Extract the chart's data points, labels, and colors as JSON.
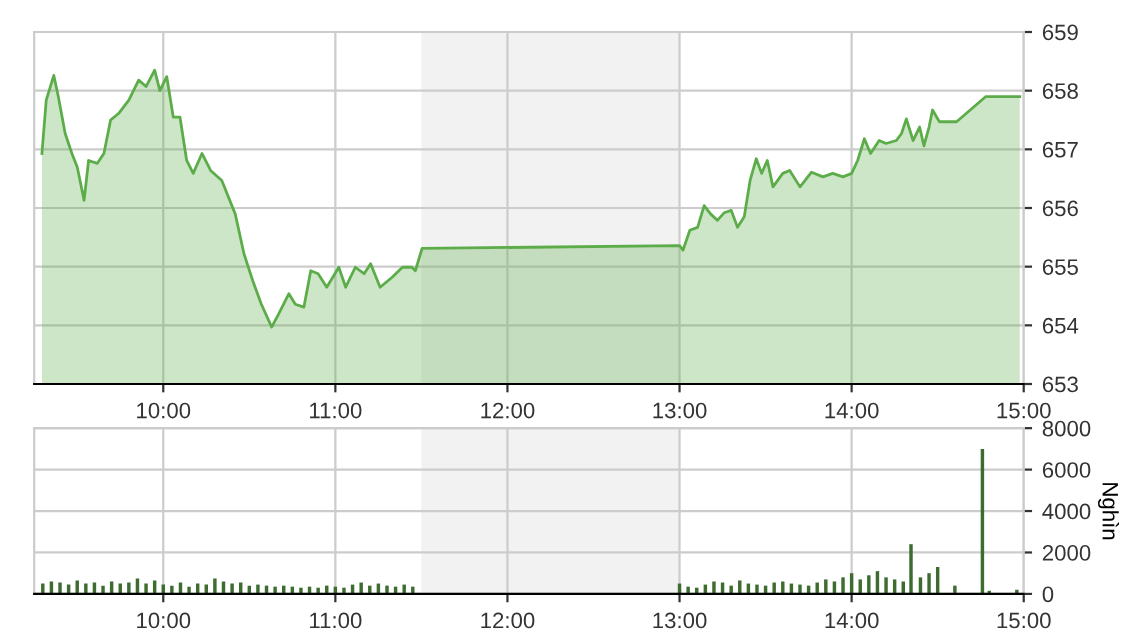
{
  "chart_data": [
    {
      "type": "area",
      "xlim": [
        9.25,
        15
      ],
      "ylim": [
        653,
        659
      ],
      "xticks": [
        {
          "value": 10,
          "label": "10:00"
        },
        {
          "value": 11,
          "label": "11:00"
        },
        {
          "value": 12,
          "label": "12:00"
        },
        {
          "value": 13,
          "label": "13:00"
        },
        {
          "value": 14,
          "label": "14:00"
        },
        {
          "value": 15,
          "label": "15:00"
        }
      ],
      "yticks": [
        653,
        654,
        655,
        656,
        657,
        658,
        659
      ],
      "grid": true,
      "bands": [
        {
          "axis": "x",
          "from": 11.5,
          "to": 13,
          "color": "#f2f2f2"
        }
      ],
      "series": [
        {
          "color": "#5cad4a",
          "x": [
            9.295,
            9.32,
            9.364,
            9.39,
            9.43,
            9.469,
            9.5,
            9.54,
            9.566,
            9.616,
            9.655,
            9.694,
            9.74,
            9.8,
            9.857,
            9.9,
            9.95,
            9.98,
            10.02,
            10.058,
            10.097,
            10.136,
            10.174,
            10.225,
            10.275,
            10.34,
            10.418,
            10.469,
            10.52,
            10.57,
            10.63,
            10.67,
            10.73,
            10.767,
            10.817,
            10.857,
            10.9,
            10.95,
            11.02,
            11.06,
            11.116,
            11.167,
            11.205,
            11.26,
            11.33,
            11.39,
            11.445,
            11.465,
            11.504,
            13.0,
            13.02,
            13.06,
            13.105,
            13.143,
            13.18,
            13.22,
            13.26,
            13.3,
            13.337,
            13.376,
            13.41,
            13.446,
            13.477,
            13.51,
            13.543,
            13.6,
            13.64,
            13.7,
            13.767,
            13.833,
            13.89,
            13.95,
            14.0,
            14.035,
            14.074,
            14.11,
            14.16,
            14.2,
            14.26,
            14.29,
            14.318,
            14.357,
            14.395,
            14.42,
            14.45,
            14.47,
            14.51,
            14.61,
            14.78,
            14.977
          ],
          "values": [
            656.93,
            657.84,
            658.26,
            657.9,
            657.27,
            656.93,
            656.7,
            656.13,
            656.81,
            656.76,
            656.93,
            657.5,
            657.61,
            657.84,
            658.18,
            658.07,
            658.35,
            658.0,
            658.24,
            657.55,
            657.55,
            656.81,
            656.59,
            656.93,
            656.64,
            656.47,
            655.9,
            655.22,
            654.76,
            654.36,
            653.97,
            654.19,
            654.54,
            654.36,
            654.31,
            654.93,
            654.88,
            654.65,
            654.99,
            654.65,
            654.99,
            654.88,
            655.05,
            654.65,
            654.82,
            654.99,
            654.99,
            654.93,
            655.31,
            655.36,
            655.28,
            655.62,
            655.67,
            656.04,
            655.9,
            655.79,
            655.92,
            655.96,
            655.67,
            655.85,
            656.47,
            656.84,
            656.59,
            656.81,
            656.36,
            656.59,
            656.64,
            656.36,
            656.61,
            656.53,
            656.59,
            656.53,
            656.59,
            656.81,
            657.18,
            656.93,
            657.15,
            657.1,
            657.15,
            657.27,
            657.52,
            657.15,
            657.38,
            657.06,
            657.38,
            657.67,
            657.47,
            657.47,
            657.9,
            657.9
          ]
        }
      ]
    },
    {
      "type": "bar",
      "xlim": [
        9.25,
        15
      ],
      "ylim": [
        0,
        8000
      ],
      "ylabel": "Nghìn",
      "xticks": [
        {
          "value": 10,
          "label": "10:00"
        },
        {
          "value": 11,
          "label": "11:00"
        },
        {
          "value": 12,
          "label": "12:00"
        },
        {
          "value": 13,
          "label": "13:00"
        },
        {
          "value": 14,
          "label": "14:00"
        },
        {
          "value": 15,
          "label": "15:00"
        }
      ],
      "yticks": [
        0,
        2000,
        4000,
        6000,
        8000
      ],
      "grid": true,
      "bands": [
        {
          "axis": "x",
          "from": 11.5,
          "to": 13,
          "color": "#f2f2f2"
        }
      ],
      "series": [
        {
          "color": "#3d6b30",
          "x": [
            9.3,
            9.35,
            9.4,
            9.45,
            9.5,
            9.55,
            9.6,
            9.65,
            9.7,
            9.75,
            9.8,
            9.85,
            9.9,
            9.95,
            10.0,
            10.05,
            10.1,
            10.15,
            10.2,
            10.25,
            10.3,
            10.35,
            10.4,
            10.45,
            10.5,
            10.55,
            10.6,
            10.65,
            10.7,
            10.75,
            10.8,
            10.85,
            10.9,
            10.95,
            11.0,
            11.05,
            11.1,
            11.15,
            11.2,
            11.25,
            11.3,
            11.35,
            11.4,
            11.45,
            13.0,
            13.05,
            13.1,
            13.15,
            13.2,
            13.25,
            13.3,
            13.35,
            13.4,
            13.45,
            13.5,
            13.55,
            13.6,
            13.65,
            13.7,
            13.75,
            13.8,
            13.85,
            13.9,
            13.95,
            14.0,
            14.05,
            14.1,
            14.15,
            14.2,
            14.25,
            14.3,
            14.345,
            14.4,
            14.45,
            14.5,
            14.6,
            14.76,
            14.8,
            14.96
          ],
          "values": [
            500,
            600,
            550,
            450,
            650,
            500,
            550,
            400,
            600,
            500,
            550,
            750,
            500,
            650,
            450,
            400,
            550,
            350,
            500,
            450,
            750,
            600,
            500,
            550,
            400,
            450,
            400,
            350,
            400,
            350,
            300,
            350,
            300,
            400,
            350,
            300,
            450,
            550,
            400,
            500,
            400,
            350,
            450,
            350,
            500,
            350,
            300,
            450,
            600,
            550,
            400,
            650,
            500,
            450,
            400,
            550,
            600,
            500,
            450,
            400,
            550,
            700,
            600,
            800,
            1000,
            700,
            900,
            1100,
            800,
            700,
            600,
            2400,
            800,
            1000,
            1300,
            400,
            7000,
            150,
            200
          ]
        }
      ]
    }
  ]
}
